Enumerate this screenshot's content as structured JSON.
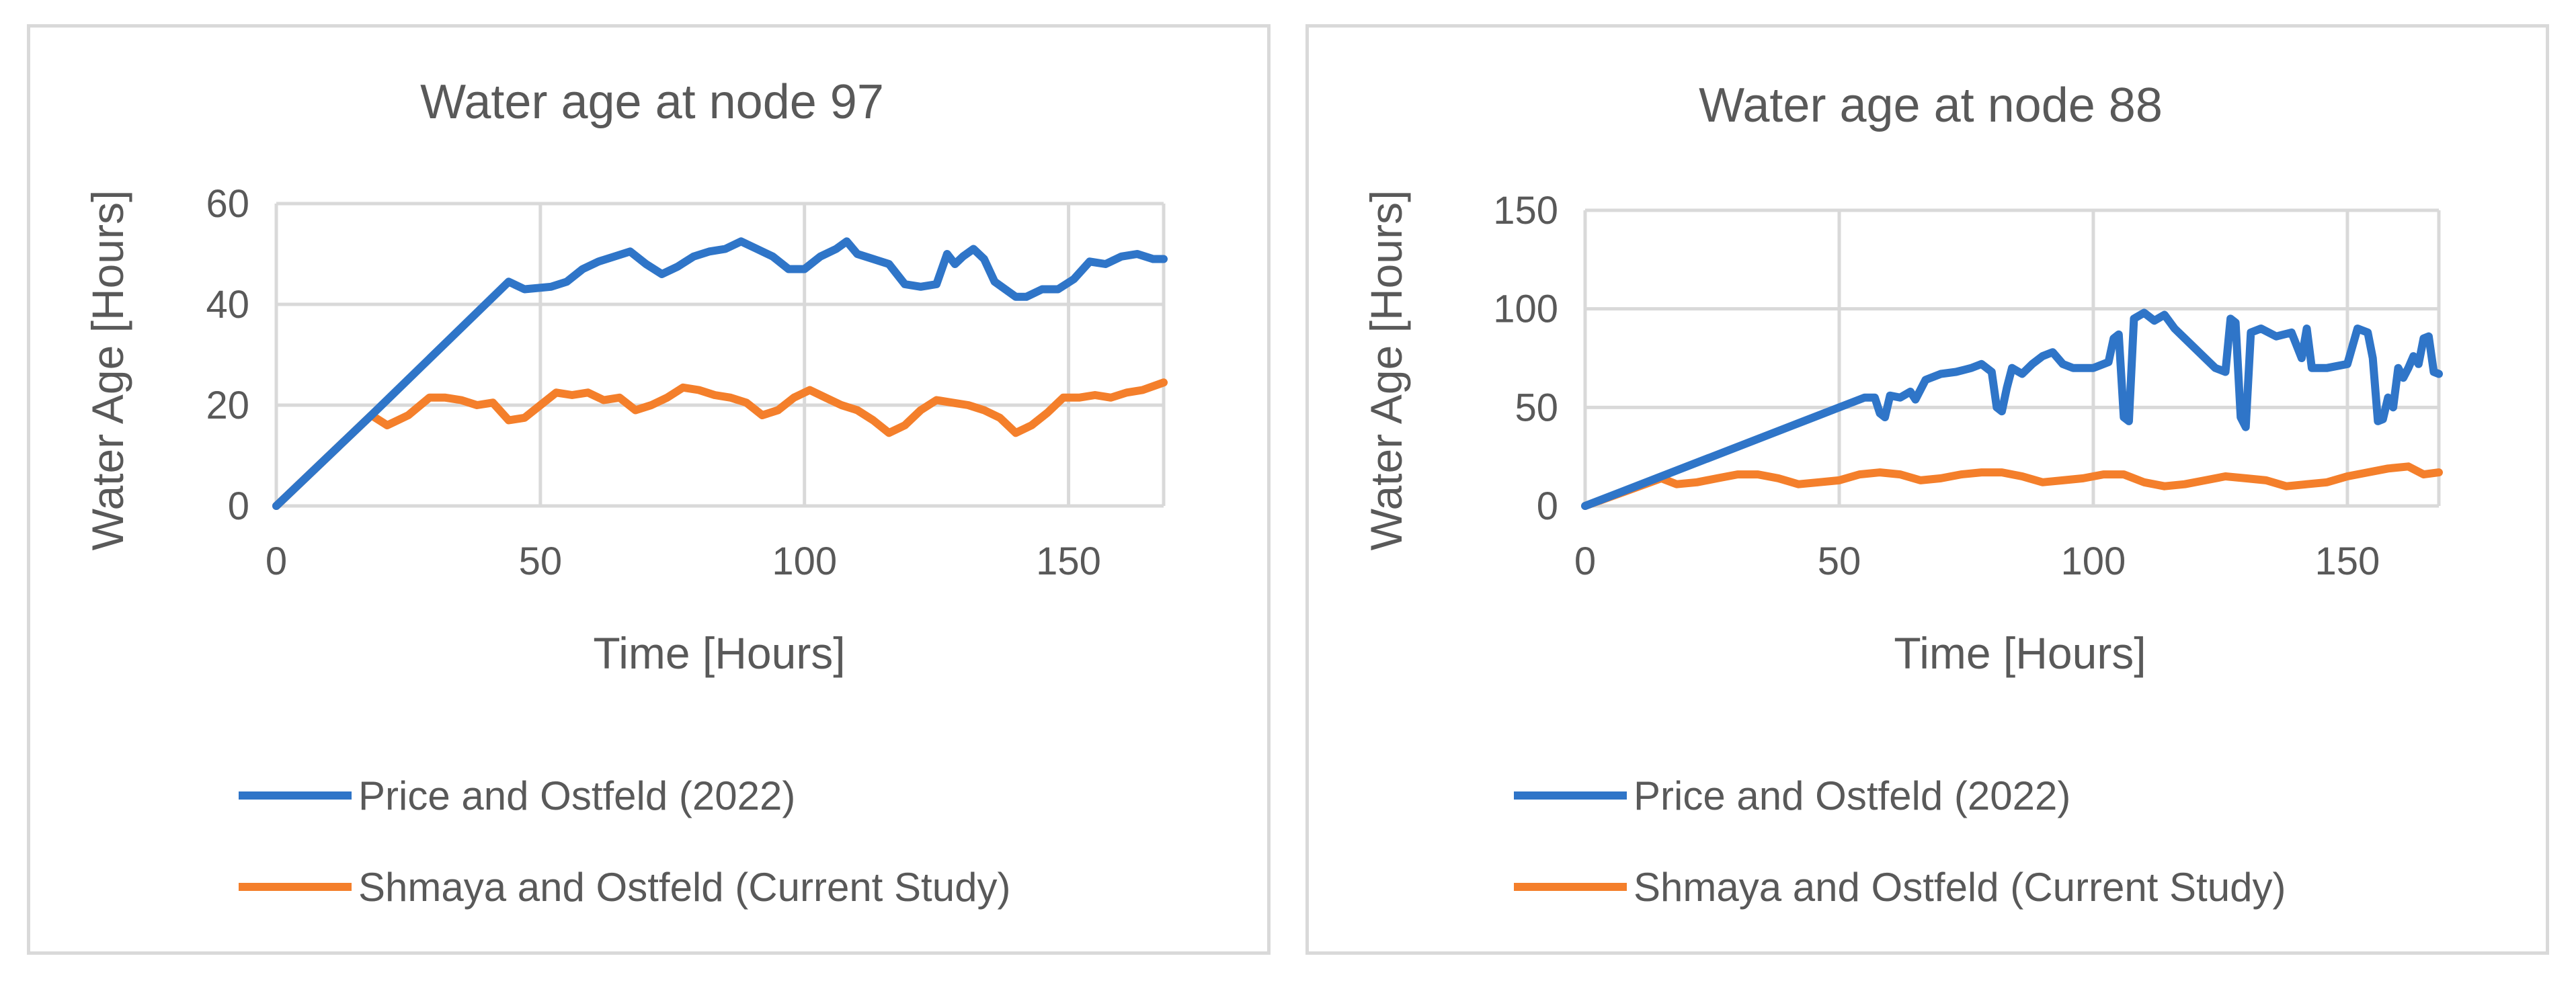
{
  "chart_data": [
    {
      "type": "line",
      "title": "Water age at node 97",
      "xlabel": "Time [Hours]",
      "ylabel": "Water Age [Hours]",
      "xlim": [
        0,
        168
      ],
      "ylim": [
        0,
        60
      ],
      "xticks": [
        0,
        50,
        100,
        150
      ],
      "yticks": [
        0,
        20,
        40,
        60
      ],
      "grid": true,
      "legend_position": "bottom",
      "series": [
        {
          "name": "Price and Ostfeld (2022)",
          "color": "#2f75c8",
          "x": [
            0,
            18,
            44,
            47,
            52,
            55,
            58,
            61,
            64,
            67,
            70,
            73,
            76,
            79,
            82,
            85,
            88,
            91,
            94,
            97,
            100,
            103,
            106,
            108,
            110,
            113,
            116,
            119,
            122,
            125,
            127,
            128.5,
            130,
            132,
            134,
            136,
            138,
            140,
            142,
            145,
            148,
            151,
            154,
            157,
            160,
            163,
            166,
            168
          ],
          "y": [
            0,
            18,
            44.5,
            43,
            43.5,
            44.5,
            47,
            48.5,
            49.5,
            50.5,
            48,
            46,
            47.5,
            49.5,
            50.5,
            51,
            52.5,
            51,
            49.5,
            47,
            47,
            49.5,
            51,
            52.5,
            50,
            49,
            48,
            44,
            43.5,
            44,
            50,
            48,
            49.5,
            51,
            49,
            44.5,
            43,
            41.5,
            41.5,
            43,
            43,
            45,
            48.5,
            48,
            49.5,
            50,
            49,
            49
          ]
        },
        {
          "name": "Shmaya and Ostfeld (Current Study)",
          "color": "#f47f2b",
          "x": [
            0,
            18,
            21,
            25,
            29,
            32,
            35,
            38,
            41,
            44,
            47,
            50,
            53,
            56,
            59,
            62,
            65,
            68,
            71,
            74,
            77,
            80,
            83,
            86,
            89,
            92,
            95,
            98,
            101,
            104,
            107,
            110,
            113,
            116,
            119,
            122,
            125,
            128,
            131,
            134,
            137,
            140,
            143,
            146,
            149,
            152,
            155,
            158,
            161,
            164,
            168
          ],
          "y": [
            0,
            18,
            16,
            18,
            21.5,
            21.5,
            21,
            20,
            20.5,
            17,
            17.5,
            20,
            22.5,
            22,
            22.5,
            21,
            21.5,
            19,
            20,
            21.5,
            23.5,
            23,
            22,
            21.5,
            20.5,
            18,
            19,
            21.5,
            23,
            21.5,
            20,
            19,
            17,
            14.5,
            16,
            19,
            21,
            20.5,
            20,
            19,
            17.5,
            14.5,
            16,
            18.5,
            21.5,
            21.5,
            22,
            21.5,
            22.5,
            23,
            24.5
          ]
        }
      ]
    },
    {
      "type": "line",
      "title": "Water age at node 88",
      "xlabel": "Time [Hours]",
      "ylabel": "Water Age [Hours]",
      "xlim": [
        0,
        168
      ],
      "ylim": [
        0,
        150
      ],
      "xticks": [
        0,
        50,
        100,
        150
      ],
      "yticks": [
        0,
        50,
        100,
        150
      ],
      "grid": true,
      "legend_position": "bottom",
      "series": [
        {
          "name": "Price and Ostfeld (2022)",
          "color": "#2f75c8",
          "x": [
            0,
            15,
            45,
            50,
            55,
            57,
            58,
            59,
            60,
            62,
            64,
            65,
            67,
            70,
            73,
            76,
            78,
            80,
            81,
            82,
            83,
            84,
            86,
            88,
            90,
            92,
            94,
            96,
            100,
            103,
            104,
            105,
            106,
            107,
            108,
            110,
            112,
            114,
            116,
            120,
            124,
            126,
            127,
            128,
            129,
            130,
            131,
            133,
            136,
            139,
            141,
            142,
            143,
            146,
            150,
            152,
            154,
            155,
            156,
            157,
            158,
            159,
            160,
            161,
            162,
            163,
            164,
            165,
            166,
            167,
            168
          ],
          "y": [
            0,
            15,
            45,
            50,
            55,
            55,
            47,
            45,
            56,
            55,
            58,
            54,
            64,
            67,
            68,
            70,
            72,
            68,
            50,
            48,
            60,
            70,
            67,
            72,
            76,
            78,
            72,
            70,
            70,
            73,
            85,
            87,
            45,
            43,
            95,
            98,
            94,
            97,
            90,
            80,
            70,
            68,
            95,
            93,
            45,
            40,
            88,
            90,
            86,
            88,
            75,
            90,
            70,
            70,
            72,
            90,
            88,
            75,
            43,
            44,
            55,
            50,
            70,
            65,
            70,
            76,
            72,
            85,
            86,
            68,
            67
          ]
        },
        {
          "name": "Shmaya and Ostfeld (Current Study)",
          "color": "#f47f2b",
          "x": [
            0,
            15,
            18,
            22,
            26,
            30,
            34,
            38,
            42,
            46,
            50,
            54,
            58,
            62,
            66,
            70,
            74,
            78,
            82,
            86,
            90,
            94,
            98,
            102,
            106,
            110,
            114,
            118,
            122,
            126,
            130,
            134,
            138,
            142,
            146,
            150,
            154,
            158,
            162,
            165,
            168
          ],
          "y": [
            0,
            14,
            11,
            12,
            14,
            16,
            16,
            14,
            11,
            12,
            13,
            16,
            17,
            16,
            13,
            14,
            16,
            17,
            17,
            15,
            12,
            13,
            14,
            16,
            16,
            12,
            10,
            11,
            13,
            15,
            14,
            13,
            10,
            11,
            12,
            15,
            17,
            19,
            20,
            16,
            17
          ]
        }
      ]
    }
  ]
}
